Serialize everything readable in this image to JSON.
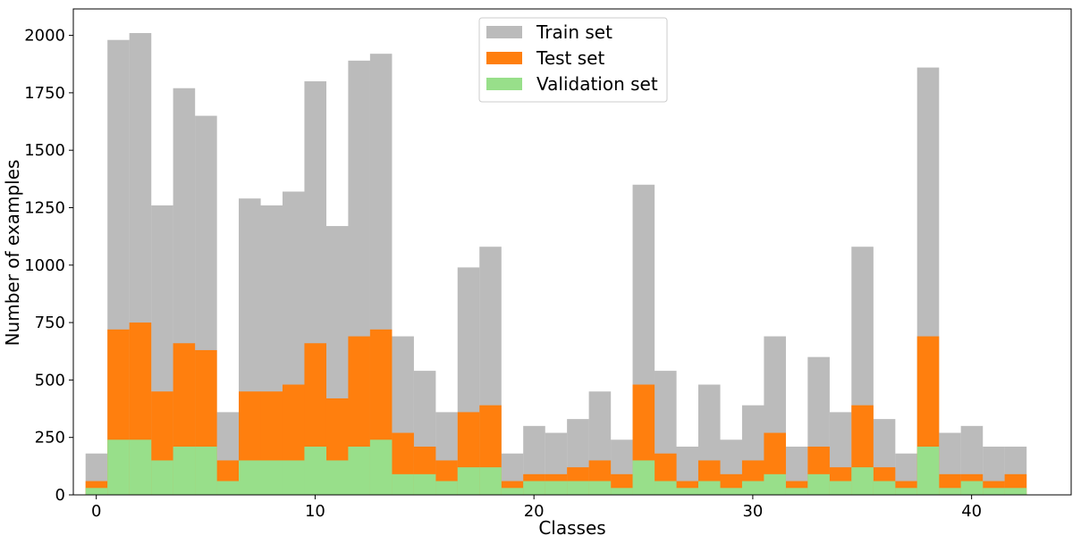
{
  "chart_data": {
    "type": "bar",
    "title": "",
    "xlabel": "Classes",
    "ylabel": "Number of examples",
    "xlim": [
      -1.05,
      44.55
    ],
    "ylim": [
      0,
      2115
    ],
    "x_ticks": [
      0,
      10,
      20,
      30,
      40
    ],
    "y_ticks": [
      0,
      250,
      500,
      750,
      1000,
      1250,
      1500,
      1750,
      2000
    ],
    "grid": false,
    "legend_position": "top-center",
    "categories": [
      0,
      1,
      2,
      3,
      4,
      5,
      6,
      7,
      8,
      9,
      10,
      11,
      12,
      13,
      14,
      15,
      16,
      17,
      18,
      19,
      20,
      21,
      22,
      23,
      24,
      25,
      26,
      27,
      28,
      29,
      30,
      31,
      32,
      33,
      34,
      35,
      36,
      37,
      38,
      39,
      40,
      41,
      42
    ],
    "series": [
      {
        "name": "Train set",
        "color": "#bbbbbb",
        "values": [
          180,
          1980,
          2010,
          1260,
          1770,
          1650,
          360,
          1290,
          1260,
          1320,
          1800,
          1170,
          1890,
          1920,
          690,
          540,
          360,
          990,
          1080,
          180,
          300,
          270,
          330,
          450,
          240,
          1350,
          540,
          210,
          480,
          240,
          390,
          690,
          210,
          600,
          360,
          1080,
          330,
          180,
          1860,
          270,
          300,
          210,
          210
        ]
      },
      {
        "name": "Test set",
        "color": "#ff7f0e",
        "values": [
          60,
          720,
          750,
          450,
          660,
          630,
          150,
          450,
          450,
          480,
          660,
          420,
          690,
          720,
          270,
          210,
          150,
          360,
          390,
          60,
          90,
          90,
          120,
          150,
          90,
          480,
          180,
          60,
          150,
          90,
          150,
          270,
          60,
          210,
          120,
          390,
          120,
          60,
          690,
          90,
          90,
          60,
          90
        ]
      },
      {
        "name": "Validation set",
        "color": "#98df8a",
        "values": [
          30,
          240,
          240,
          150,
          210,
          210,
          60,
          150,
          150,
          150,
          210,
          150,
          210,
          240,
          90,
          90,
          60,
          120,
          120,
          30,
          60,
          60,
          60,
          60,
          30,
          150,
          60,
          30,
          60,
          30,
          60,
          90,
          30,
          90,
          60,
          120,
          60,
          30,
          210,
          30,
          60,
          30,
          30
        ]
      }
    ]
  }
}
